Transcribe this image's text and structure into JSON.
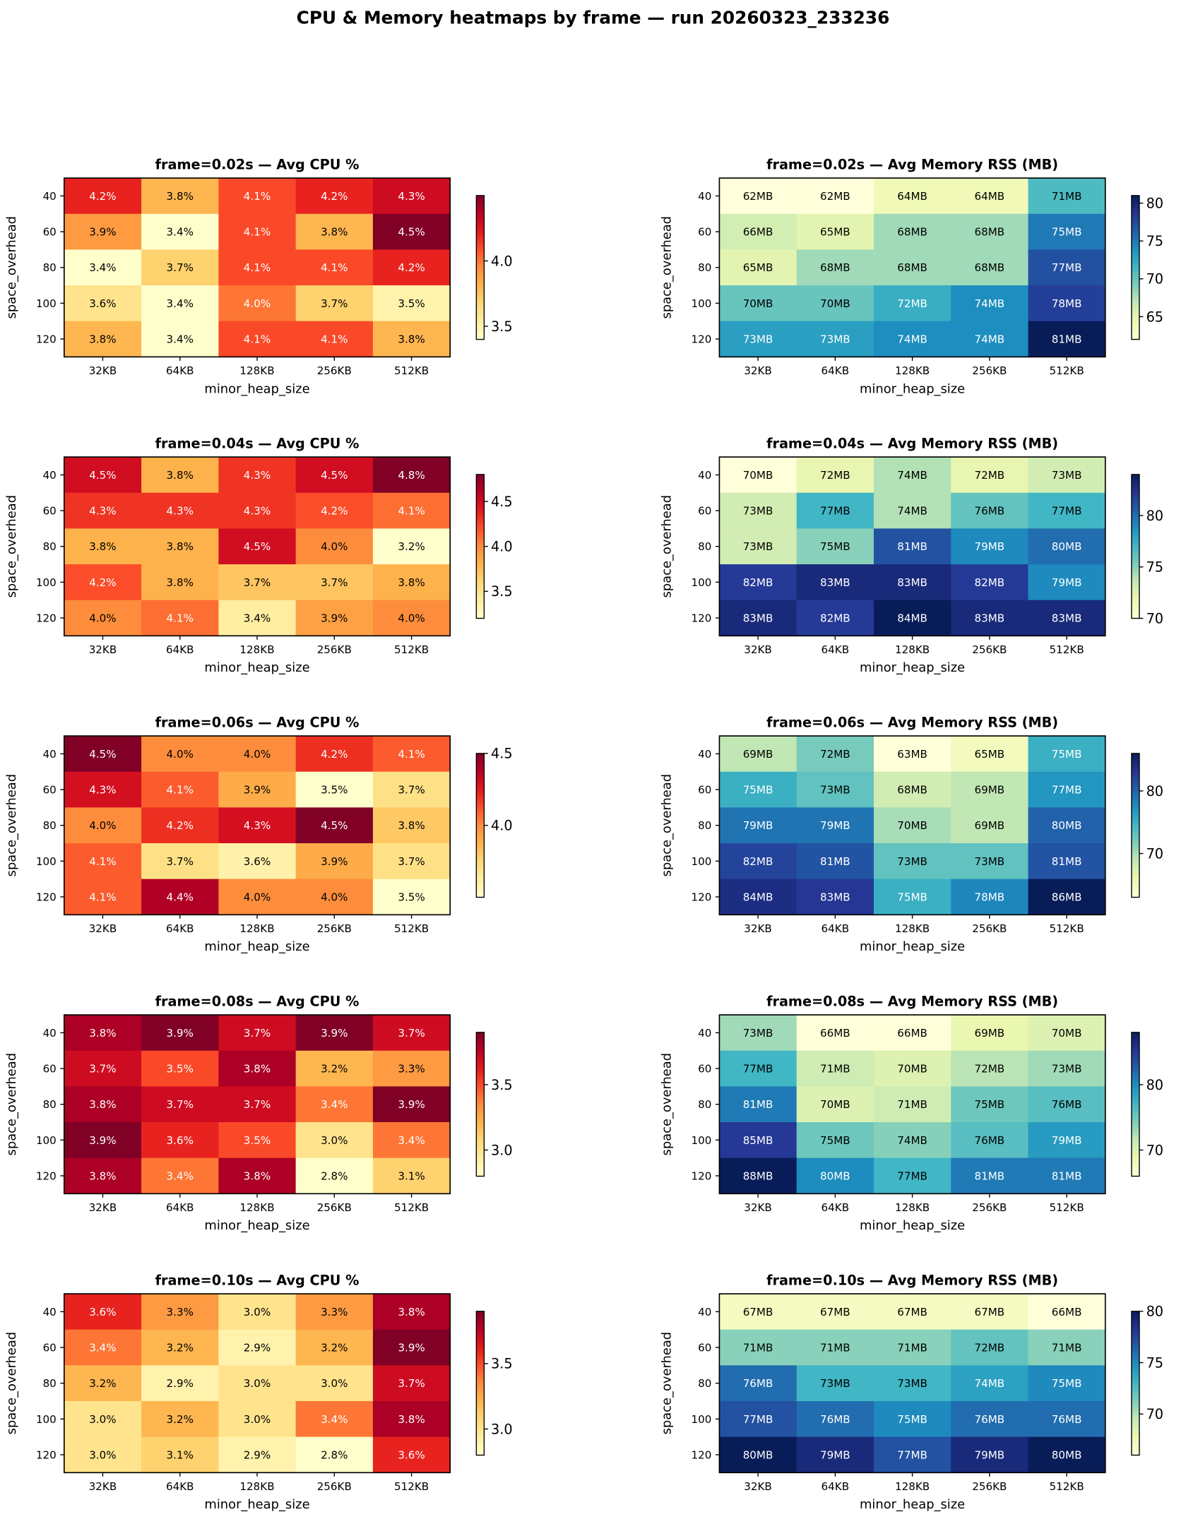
{
  "title": "CPU & Memory heatmaps by frame — run 20260323_233236",
  "chart_data": {
    "type": "heatmap",
    "xlabel": "minor_heap_size",
    "ylabel": "space_overhead",
    "x_categories": [
      "32KB",
      "64KB",
      "128KB",
      "256KB",
      "512KB"
    ],
    "y_categories": [
      "40",
      "60",
      "80",
      "100",
      "120"
    ],
    "colormaps": {
      "cpu": "YlOrRd",
      "memory": "YlGnBu"
    },
    "panels": [
      {
        "frame": "0.02s",
        "cpu": {
          "title": "frame=0.02s — Avg CPU %",
          "unit": "%",
          "ticks": [
            3.5,
            4.0
          ],
          "values": [
            [
              4.2,
              3.8,
              4.1,
              4.2,
              4.3
            ],
            [
              3.9,
              3.4,
              4.1,
              3.8,
              4.5
            ],
            [
              3.4,
              3.7,
              4.1,
              4.1,
              4.2
            ],
            [
              3.6,
              3.4,
              4.0,
              3.7,
              3.5
            ],
            [
              3.8,
              3.4,
              4.1,
              4.1,
              3.8
            ]
          ]
        },
        "memory": {
          "title": "frame=0.02s — Avg Memory RSS (MB)",
          "unit": "MB",
          "ticks": [
            65,
            70,
            75,
            80
          ],
          "values": [
            [
              62,
              62,
              64,
              64,
              71
            ],
            [
              66,
              65,
              68,
              68,
              75
            ],
            [
              65,
              68,
              68,
              68,
              77
            ],
            [
              70,
              70,
              72,
              74,
              78
            ],
            [
              73,
              73,
              74,
              74,
              81
            ]
          ]
        }
      },
      {
        "frame": "0.04s",
        "cpu": {
          "title": "frame=0.04s — Avg CPU %",
          "unit": "%",
          "ticks": [
            3.5,
            4.0,
            4.5
          ],
          "values": [
            [
              4.5,
              3.8,
              4.3,
              4.5,
              4.8
            ],
            [
              4.3,
              4.3,
              4.3,
              4.2,
              4.1
            ],
            [
              3.8,
              3.8,
              4.5,
              4.0,
              3.2
            ],
            [
              4.2,
              3.8,
              3.7,
              3.7,
              3.8
            ],
            [
              4.0,
              4.1,
              3.4,
              3.9,
              4.0
            ]
          ]
        },
        "memory": {
          "title": "frame=0.04s — Avg Memory RSS (MB)",
          "unit": "MB",
          "ticks": [
            70,
            75,
            80
          ],
          "values": [
            [
              70,
              72,
              74,
              72,
              73
            ],
            [
              73,
              77,
              74,
              76,
              77
            ],
            [
              73,
              75,
              81,
              79,
              80
            ],
            [
              82,
              83,
              83,
              82,
              79
            ],
            [
              83,
              82,
              84,
              83,
              83
            ]
          ]
        }
      },
      {
        "frame": "0.06s",
        "cpu": {
          "title": "frame=0.06s — Avg CPU %",
          "unit": "%",
          "ticks": [
            4.0,
            4.5
          ],
          "values": [
            [
              4.5,
              4.0,
              4.0,
              4.2,
              4.1
            ],
            [
              4.3,
              4.1,
              3.9,
              3.5,
              3.7
            ],
            [
              4.0,
              4.2,
              4.3,
              4.5,
              3.8
            ],
            [
              4.1,
              3.7,
              3.6,
              3.9,
              3.7
            ],
            [
              4.1,
              4.4,
              4.0,
              4.0,
              3.5
            ]
          ]
        },
        "memory": {
          "title": "frame=0.06s — Avg Memory RSS (MB)",
          "unit": "MB",
          "ticks": [
            70,
            80
          ],
          "values": [
            [
              69,
              72,
              63,
              65,
              75
            ],
            [
              75,
              73,
              68,
              69,
              77
            ],
            [
              79,
              79,
              70,
              69,
              80
            ],
            [
              82,
              81,
              73,
              73,
              81
            ],
            [
              84,
              83,
              75,
              78,
              86
            ]
          ]
        }
      },
      {
        "frame": "0.08s",
        "cpu": {
          "title": "frame=0.08s — Avg CPU %",
          "unit": "%",
          "ticks": [
            3.0,
            3.5
          ],
          "values": [
            [
              3.8,
              3.9,
              3.7,
              3.9,
              3.7
            ],
            [
              3.7,
              3.5,
              3.8,
              3.2,
              3.3
            ],
            [
              3.8,
              3.7,
              3.7,
              3.4,
              3.9
            ],
            [
              3.9,
              3.6,
              3.5,
              3.0,
              3.4
            ],
            [
              3.8,
              3.4,
              3.8,
              2.8,
              3.1
            ]
          ]
        },
        "memory": {
          "title": "frame=0.08s — Avg Memory RSS (MB)",
          "unit": "MB",
          "ticks": [
            70,
            80
          ],
          "values": [
            [
              73,
              66,
              66,
              69,
              70
            ],
            [
              77,
              71,
              70,
              72,
              73
            ],
            [
              81,
              70,
              71,
              75,
              76
            ],
            [
              85,
              75,
              74,
              76,
              79
            ],
            [
              88,
              80,
              77,
              81,
              81
            ]
          ]
        }
      },
      {
        "frame": "0.10s",
        "cpu": {
          "title": "frame=0.10s — Avg CPU %",
          "unit": "%",
          "ticks": [
            3.0,
            3.5
          ],
          "values": [
            [
              3.6,
              3.3,
              3.0,
              3.3,
              3.8
            ],
            [
              3.4,
              3.2,
              2.9,
              3.2,
              3.9
            ],
            [
              3.2,
              2.9,
              3.0,
              3.0,
              3.7
            ],
            [
              3.0,
              3.2,
              3.0,
              3.4,
              3.8
            ],
            [
              3.0,
              3.1,
              2.9,
              2.8,
              3.6
            ]
          ]
        },
        "memory": {
          "title": "frame=0.10s — Avg Memory RSS (MB)",
          "unit": "MB",
          "ticks": [
            70,
            75,
            80
          ],
          "values": [
            [
              67,
              67,
              67,
              67,
              66
            ],
            [
              71,
              71,
              71,
              72,
              71
            ],
            [
              76,
              73,
              73,
              74,
              75
            ],
            [
              77,
              76,
              75,
              76,
              76
            ],
            [
              80,
              79,
              77,
              79,
              80
            ]
          ]
        }
      }
    ]
  }
}
